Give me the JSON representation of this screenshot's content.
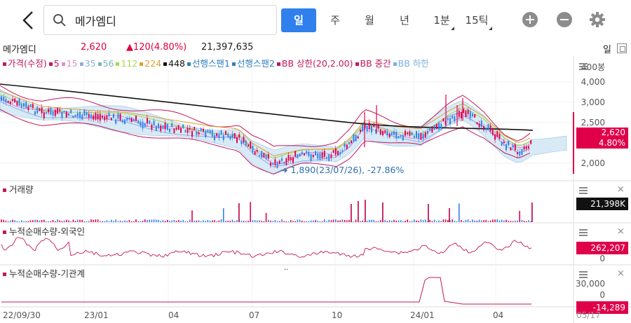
{
  "search": {
    "value": "메가엠디"
  },
  "periods": [
    {
      "label": "일",
      "active": true
    },
    {
      "label": "주"
    },
    {
      "label": "월"
    },
    {
      "label": "년"
    },
    {
      "label": "1분"
    },
    {
      "label": "15틱"
    }
  ],
  "info": {
    "name": "메가엠디",
    "price": "2,620",
    "change": "▲120(4.80%)",
    "volume": "21,397,635",
    "period_label": "일"
  },
  "legend": [
    {
      "text": "가격(수정)",
      "color": "#c2185b"
    },
    {
      "text": "5",
      "color": "#c2185b"
    },
    {
      "text": "15",
      "color": "#d88fd8"
    },
    {
      "text": "35",
      "color": "#8fb0e0"
    },
    {
      "text": "56",
      "color": "#7ab6c0"
    },
    {
      "text": "112",
      "color": "#a8d84a"
    },
    {
      "text": "224",
      "color": "#e0a030"
    },
    {
      "text": "448",
      "color": "#111111"
    },
    {
      "text": "선행스팬1",
      "color": "#2f80c0"
    },
    {
      "text": "선행스팬2",
      "color": "#2f80c0"
    },
    {
      "text": "BB 상한(20,2.00)",
      "color": "#c2185b"
    },
    {
      "text": "BB 중간",
      "color": "#c2185b"
    },
    {
      "text": "BB 하한",
      "color": "#7ab0e0"
    }
  ],
  "price_axis": [
    "400봉",
    "4,000",
    "3,000",
    "2,500",
    "2,000"
  ],
  "price_tag": {
    "price": "2,620",
    "pct": "4.80%"
  },
  "low_annotation": "1,890(23/07/26), -27.86%",
  "volume_panel": {
    "label": "거래량",
    "tag": "21,398K"
  },
  "foreign_panel": {
    "label": "누적순매수량-외국인",
    "tag": "262,207",
    "zero": "0"
  },
  "inst_panel": {
    "label": "누적순매수량-기관계",
    "axis_top": "30,000",
    "zero": "0",
    "tag": "-14,289"
  },
  "x_axis": [
    "22/09/30",
    "23/01",
    "04",
    "07",
    "10",
    "24/01",
    "04",
    "05/17"
  ],
  "colors": {
    "up": "#e0004a",
    "down": "#2f80ed",
    "accent": "#2f80ed"
  }
}
